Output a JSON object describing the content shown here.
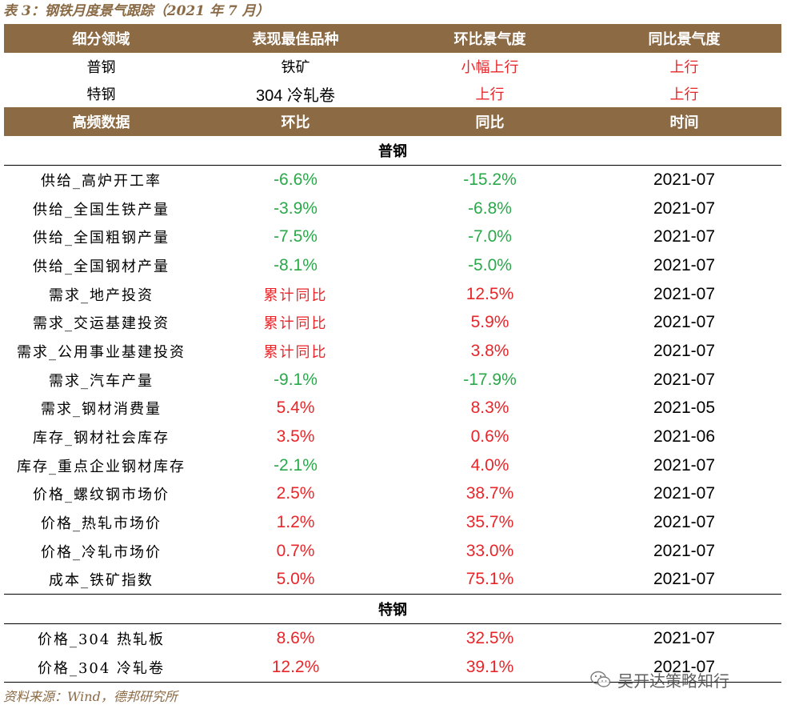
{
  "title": "表 3：钢铁月度景气跟踪（2021 年 7 月）",
  "header1": [
    "细分领域",
    "表现最佳品种",
    "环比景气度",
    "同比景气度"
  ],
  "top_rows": [
    {
      "field": "普钢",
      "best": "铁矿",
      "mom": "小幅上行",
      "yoy": "上行",
      "best_num": false
    },
    {
      "field": "特钢",
      "best": "304 冷轧卷",
      "mom": "上行",
      "yoy": "上行",
      "best_num": true
    }
  ],
  "header2": [
    "高频数据",
    "环比",
    "同比",
    "时间"
  ],
  "sections": [
    {
      "name": "普钢",
      "rows": [
        {
          "name": "供给_高炉开工率",
          "mom": "-6.6%",
          "mom_color": "green",
          "yoy": "-15.2%",
          "yoy_color": "green",
          "time": "2021-07"
        },
        {
          "name": "供给_全国生铁产量",
          "mom": "-3.9%",
          "mom_color": "green",
          "yoy": "-6.8%",
          "yoy_color": "green",
          "time": "2021-07"
        },
        {
          "name": "供给_全国粗钢产量",
          "mom": "-7.5%",
          "mom_color": "green",
          "yoy": "-7.0%",
          "yoy_color": "green",
          "time": "2021-07"
        },
        {
          "name": "供给_全国钢材产量",
          "mom": "-8.1%",
          "mom_color": "green",
          "yoy": "-5.0%",
          "yoy_color": "green",
          "time": "2021-07"
        },
        {
          "name": "需求_地产投资",
          "mom": "累计同比",
          "mom_color": "red",
          "yoy": "12.5%",
          "yoy_color": "red",
          "time": "2021-07"
        },
        {
          "name": "需求_交运基建投资",
          "mom": "累计同比",
          "mom_color": "red",
          "yoy": "5.9%",
          "yoy_color": "red",
          "time": "2021-07"
        },
        {
          "name": "需求_公用事业基建投资",
          "mom": "累计同比",
          "mom_color": "red",
          "yoy": "3.8%",
          "yoy_color": "red",
          "time": "2021-07"
        },
        {
          "name": "需求_汽车产量",
          "mom": "-9.1%",
          "mom_color": "green",
          "yoy": "-17.9%",
          "yoy_color": "green",
          "time": "2021-07"
        },
        {
          "name": "需求_钢材消费量",
          "mom": "5.4%",
          "mom_color": "red",
          "yoy": "8.3%",
          "yoy_color": "red",
          "time": "2021-05"
        },
        {
          "name": "库存_钢材社会库存",
          "mom": "3.5%",
          "mom_color": "red",
          "yoy": "0.6%",
          "yoy_color": "red",
          "time": "2021-06"
        },
        {
          "name": "库存_重点企业钢材库存",
          "mom": "-2.1%",
          "mom_color": "green",
          "yoy": "4.0%",
          "yoy_color": "red",
          "time": "2021-07"
        },
        {
          "name": "价格_螺纹钢市场价",
          "mom": "2.5%",
          "mom_color": "red",
          "yoy": "38.7%",
          "yoy_color": "red",
          "time": "2021-07"
        },
        {
          "name": "价格_热轧市场价",
          "mom": "1.2%",
          "mom_color": "red",
          "yoy": "35.7%",
          "yoy_color": "red",
          "time": "2021-07"
        },
        {
          "name": "价格_冷轧市场价",
          "mom": "0.7%",
          "mom_color": "red",
          "yoy": "33.0%",
          "yoy_color": "red",
          "time": "2021-07"
        },
        {
          "name": "成本_铁矿指数",
          "mom": "5.0%",
          "mom_color": "red",
          "yoy": "75.1%",
          "yoy_color": "red",
          "time": "2021-07"
        }
      ]
    },
    {
      "name": "特钢",
      "rows": [
        {
          "name": "价格_304 热轧板",
          "mom": "8.6%",
          "mom_color": "red",
          "yoy": "32.5%",
          "yoy_color": "red",
          "time": "2021-07"
        },
        {
          "name": "价格_304 冷轧卷",
          "mom": "12.2%",
          "mom_color": "red",
          "yoy": "39.1%",
          "yoy_color": "red",
          "time": "2021-07"
        }
      ]
    }
  ],
  "source": "资料来源：Wind，德邦研究所",
  "watermark": {
    "icon": "wechat-icon",
    "text": "吴开达策略知行"
  },
  "colors": {
    "header_bg": "#8b6a44",
    "title": "#8a6a45",
    "up": "#e8262a",
    "down": "#2aa84a"
  }
}
